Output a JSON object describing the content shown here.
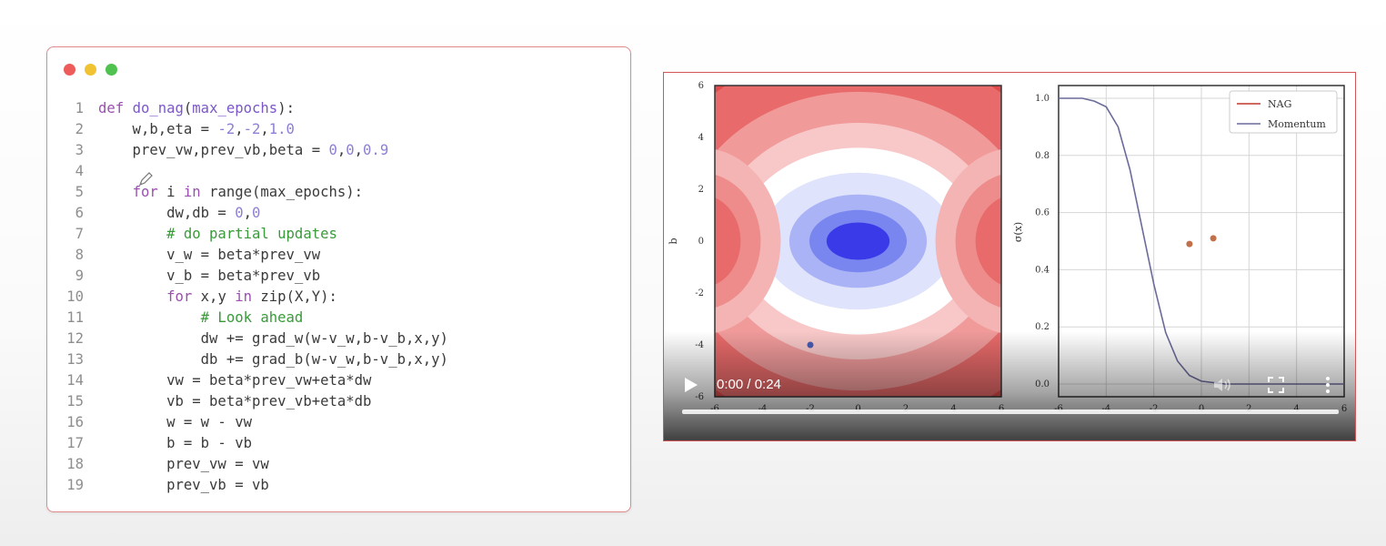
{
  "code_window": {
    "lines": [
      {
        "n": "1",
        "tokens": [
          {
            "t": "def ",
            "c": "kw"
          },
          {
            "t": "do_nag",
            "c": "fn"
          },
          {
            "t": "(",
            "c": "op"
          },
          {
            "t": "max_epochs",
            "c": "fn"
          },
          {
            "t": "):",
            "c": "op"
          }
        ]
      },
      {
        "n": "2",
        "tokens": [
          {
            "t": "    w,b,eta = ",
            "c": "op"
          },
          {
            "t": "-2",
            "c": "num"
          },
          {
            "t": ",",
            "c": "op"
          },
          {
            "t": "-2",
            "c": "num"
          },
          {
            "t": ",",
            "c": "op"
          },
          {
            "t": "1.0",
            "c": "num"
          }
        ]
      },
      {
        "n": "3",
        "tokens": [
          {
            "t": "    prev_vw,prev_vb,beta = ",
            "c": "op"
          },
          {
            "t": "0",
            "c": "num"
          },
          {
            "t": ",",
            "c": "op"
          },
          {
            "t": "0",
            "c": "num"
          },
          {
            "t": ",",
            "c": "op"
          },
          {
            "t": "0.9",
            "c": "num"
          }
        ]
      },
      {
        "n": "4",
        "tokens": [
          {
            "t": "",
            "c": "op"
          }
        ]
      },
      {
        "n": "5",
        "tokens": [
          {
            "t": "    ",
            "c": "op"
          },
          {
            "t": "for",
            "c": "kw"
          },
          {
            "t": " i ",
            "c": "op"
          },
          {
            "t": "in",
            "c": "kw"
          },
          {
            "t": " range(max_epochs):",
            "c": "op"
          }
        ]
      },
      {
        "n": "6",
        "tokens": [
          {
            "t": "        dw,db = ",
            "c": "op"
          },
          {
            "t": "0",
            "c": "num"
          },
          {
            "t": ",",
            "c": "op"
          },
          {
            "t": "0",
            "c": "num"
          }
        ]
      },
      {
        "n": "7",
        "tokens": [
          {
            "t": "        # do partial updates",
            "c": "cm"
          }
        ]
      },
      {
        "n": "8",
        "tokens": [
          {
            "t": "        v_w = beta*prev_vw",
            "c": "op"
          }
        ]
      },
      {
        "n": "9",
        "tokens": [
          {
            "t": "        v_b = beta*prev_vb",
            "c": "op"
          }
        ]
      },
      {
        "n": "10",
        "tokens": [
          {
            "t": "        ",
            "c": "op"
          },
          {
            "t": "for",
            "c": "kw"
          },
          {
            "t": " x,y ",
            "c": "op"
          },
          {
            "t": "in",
            "c": "kw"
          },
          {
            "t": " zip(X,Y):",
            "c": "op"
          }
        ]
      },
      {
        "n": "11",
        "tokens": [
          {
            "t": "            # Look ahead",
            "c": "cm"
          }
        ]
      },
      {
        "n": "12",
        "tokens": [
          {
            "t": "            dw += grad_w(w-v_w,b-v_b,x,y)",
            "c": "op"
          }
        ]
      },
      {
        "n": "13",
        "tokens": [
          {
            "t": "            db += grad_b(w-v_w,b-v_b,x,y)",
            "c": "op"
          }
        ]
      },
      {
        "n": "14",
        "tokens": [
          {
            "t": "        vw = beta*prev_vw+eta*dw",
            "c": "op"
          }
        ]
      },
      {
        "n": "15",
        "tokens": [
          {
            "t": "        vb = beta*prev_vb+eta*db",
            "c": "op"
          }
        ]
      },
      {
        "n": "16",
        "tokens": [
          {
            "t": "        w = w - vw",
            "c": "op"
          }
        ]
      },
      {
        "n": "17",
        "tokens": [
          {
            "t": "        b = b - vb",
            "c": "op"
          }
        ]
      },
      {
        "n": "18",
        "tokens": [
          {
            "t": "        prev_vw = vw",
            "c": "op"
          }
        ]
      },
      {
        "n": "19",
        "tokens": [
          {
            "t": "        prev_vb = vb",
            "c": "op"
          }
        ]
      }
    ]
  },
  "video": {
    "time": "0:00 / 0:24",
    "progress": 0.0,
    "icons": {
      "play": "play-icon",
      "volume": "volume-icon",
      "fullscreen": "fullscreen-icon",
      "more": "more-vert-icon"
    }
  },
  "chart_data": [
    {
      "type": "heatmap",
      "ylabel": "b",
      "xlim": [
        -6,
        6
      ],
      "ylim": [
        -6,
        6
      ],
      "y_ticks": [
        "6",
        "4",
        "2",
        "0",
        "-2",
        "-4",
        "-6"
      ],
      "x_ticks": [
        "-6",
        "-4",
        "-2",
        "0",
        "2",
        "4",
        "6"
      ],
      "colors": {
        "high": "#e04a4a",
        "mid": "#ffffff",
        "low": "#3a3ae8"
      },
      "points": [
        {
          "x": -2,
          "y": -4,
          "color": "#4a5bb5"
        }
      ]
    },
    {
      "type": "line",
      "ylabel": "σ(x)",
      "xlim": [
        -6,
        6
      ],
      "ylim": [
        0.0,
        1.0
      ],
      "y_ticks": [
        "1.0",
        "0.8",
        "0.6",
        "0.4",
        "0.2",
        "0.0"
      ],
      "x_ticks": [
        "-6",
        "-4",
        "-2",
        "0",
        "2",
        "4",
        "6"
      ],
      "grid": true,
      "legend": "top-right",
      "series": [
        {
          "name": "NAG",
          "color": "#c0392b",
          "x": [],
          "y": []
        },
        {
          "name": "Momentum",
          "color": "#6b6b9b",
          "x": [
            -6,
            -5,
            -4.5,
            -4,
            -3.5,
            -3,
            -2.5,
            -2,
            -1.5,
            -1,
            -0.5,
            0,
            1,
            2,
            3,
            4,
            5,
            6
          ],
          "y": [
            1.0,
            1.0,
            0.99,
            0.97,
            0.9,
            0.75,
            0.55,
            0.35,
            0.18,
            0.08,
            0.03,
            0.01,
            0.0,
            0.0,
            0.0,
            0.0,
            0.0,
            0.0
          ]
        }
      ],
      "points": [
        {
          "x": -0.5,
          "y": 0.49,
          "color": "#c0704a"
        },
        {
          "x": 0.5,
          "y": 0.51,
          "color": "#c0704a"
        }
      ]
    }
  ]
}
